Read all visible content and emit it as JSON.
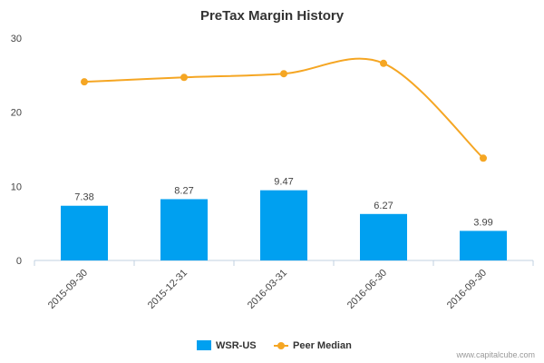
{
  "chart_data": {
    "type": "bar",
    "title": "PreTax Margin History",
    "categories": [
      "2015-09-30",
      "2015-12-31",
      "2016-03-31",
      "2016-06-30",
      "2016-09-30"
    ],
    "series": [
      {
        "name": "WSR-US",
        "type": "bar",
        "color": "#00a0f0",
        "values": [
          7.38,
          8.27,
          9.47,
          6.27,
          3.99
        ],
        "data_labels": [
          "7.38",
          "8.27",
          "9.47",
          "6.27",
          "3.99"
        ]
      },
      {
        "name": "Peer Median",
        "type": "line",
        "color": "#f5a623",
        "values": [
          24.1,
          24.7,
          25.2,
          26.6,
          13.8
        ]
      }
    ],
    "yticks": [
      "0",
      "10",
      "20",
      "30"
    ],
    "ylim": [
      0,
      30
    ],
    "grid": false,
    "legend_position": "bottom-center"
  },
  "credit": "www.capitalcube.com"
}
